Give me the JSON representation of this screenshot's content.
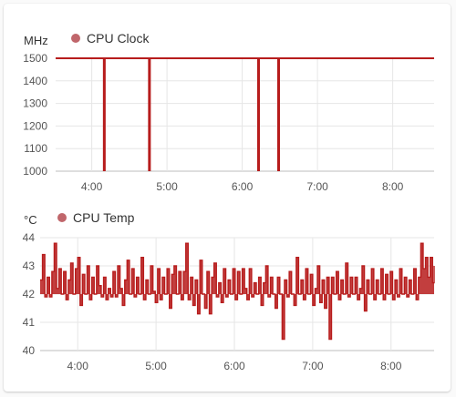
{
  "chart_data": [
    {
      "type": "line",
      "title": "",
      "ylabel": "MHz",
      "xlabel": "",
      "series": [
        {
          "name": "CPU Clock",
          "color": "#b71c1c"
        }
      ],
      "legend_marker_color": "#c0666b",
      "ylim": [
        1000,
        1500
      ],
      "yticks": [
        "1000",
        "1100",
        "1200",
        "1300",
        "1400",
        "1500"
      ],
      "xticks": [
        "4:00",
        "5:00",
        "6:00",
        "7:00",
        "8:00"
      ],
      "xlim_hours": [
        3.52,
        8.55
      ],
      "grid": true,
      "legend_position": "top-left",
      "baseline_value": 1500,
      "dips": [
        {
          "time": "4:10",
          "value": 1000
        },
        {
          "time": "4:46",
          "value": 1000
        },
        {
          "time": "6:13",
          "value": 1000
        },
        {
          "time": "6:29",
          "value": 1000
        }
      ]
    },
    {
      "type": "line",
      "title": "",
      "ylabel": "°C",
      "xlabel": "",
      "series": [
        {
          "name": "CPU Temp",
          "color": "#b71c1c"
        }
      ],
      "legend_marker_color": "#c0666b",
      "ylim": [
        40,
        44
      ],
      "yticks": [
        "40",
        "41",
        "42",
        "43",
        "44"
      ],
      "xticks": [
        "4:00",
        "5:00",
        "6:00",
        "7:00",
        "8:00"
      ],
      "xlim_hours": [
        3.52,
        8.55
      ],
      "grid": true,
      "legend_position": "top-left",
      "points": [
        [
          3.52,
          42.5
        ],
        [
          3.55,
          43.4
        ],
        [
          3.58,
          41.9
        ],
        [
          3.61,
          42.6
        ],
        [
          3.64,
          41.9
        ],
        [
          3.67,
          42.8
        ],
        [
          3.7,
          43.8
        ],
        [
          3.73,
          42.2
        ],
        [
          3.76,
          42.9
        ],
        [
          3.79,
          42.0
        ],
        [
          3.82,
          42.8
        ],
        [
          3.85,
          41.8
        ],
        [
          3.88,
          42.5
        ],
        [
          3.91,
          43.1
        ],
        [
          3.94,
          42.0
        ],
        [
          3.97,
          42.9
        ],
        [
          4.0,
          43.3
        ],
        [
          4.03,
          41.6
        ],
        [
          4.06,
          42.7
        ],
        [
          4.09,
          42.0
        ],
        [
          4.12,
          43.0
        ],
        [
          4.15,
          41.8
        ],
        [
          4.18,
          42.6
        ],
        [
          4.21,
          42.0
        ],
        [
          4.24,
          43.0
        ],
        [
          4.27,
          42.3
        ],
        [
          4.3,
          41.9
        ],
        [
          4.33,
          42.6
        ],
        [
          4.36,
          41.8
        ],
        [
          4.39,
          42.2
        ],
        [
          4.42,
          41.9
        ],
        [
          4.45,
          42.8
        ],
        [
          4.48,
          41.9
        ],
        [
          4.51,
          43.0
        ],
        [
          4.54,
          42.2
        ],
        [
          4.57,
          41.6
        ],
        [
          4.6,
          42.5
        ],
        [
          4.63,
          43.2
        ],
        [
          4.66,
          42.0
        ],
        [
          4.69,
          42.9
        ],
        [
          4.72,
          41.9
        ],
        [
          4.75,
          42.6
        ],
        [
          4.78,
          42.0
        ],
        [
          4.81,
          43.3
        ],
        [
          4.84,
          41.8
        ],
        [
          4.87,
          42.5
        ],
        [
          4.9,
          42.0
        ],
        [
          4.93,
          43.0
        ],
        [
          4.96,
          42.1
        ],
        [
          4.99,
          41.7
        ],
        [
          5.02,
          42.9
        ],
        [
          5.05,
          41.8
        ],
        [
          5.08,
          42.6
        ],
        [
          5.11,
          42.0
        ],
        [
          5.14,
          42.9
        ],
        [
          5.17,
          41.5
        ],
        [
          5.2,
          42.7
        ],
        [
          5.23,
          43.0
        ],
        [
          5.26,
          42.0
        ],
        [
          5.29,
          42.8
        ],
        [
          5.32,
          41.8
        ],
        [
          5.35,
          42.8
        ],
        [
          5.38,
          43.8
        ],
        [
          5.41,
          41.8
        ],
        [
          5.44,
          42.6
        ],
        [
          5.47,
          41.6
        ],
        [
          5.5,
          42.5
        ],
        [
          5.53,
          41.3
        ],
        [
          5.56,
          43.2
        ],
        [
          5.59,
          42.0
        ],
        [
          5.62,
          41.5
        ],
        [
          5.65,
          42.8
        ],
        [
          5.68,
          41.3
        ],
        [
          5.71,
          42.6
        ],
        [
          5.74,
          43.1
        ],
        [
          5.77,
          41.9
        ],
        [
          5.8,
          42.4
        ],
        [
          5.83,
          41.7
        ],
        [
          5.86,
          42.9
        ],
        [
          5.89,
          41.9
        ],
        [
          5.92,
          42.5
        ],
        [
          5.95,
          42.0
        ],
        [
          5.98,
          42.9
        ],
        [
          6.01,
          41.8
        ],
        [
          6.04,
          42.8
        ],
        [
          6.07,
          42.0
        ],
        [
          6.1,
          42.9
        ],
        [
          6.13,
          42.2
        ],
        [
          6.16,
          41.8
        ],
        [
          6.19,
          42.9
        ],
        [
          6.22,
          41.9
        ],
        [
          6.25,
          42.4
        ],
        [
          6.28,
          42.0
        ],
        [
          6.31,
          42.6
        ],
        [
          6.34,
          41.6
        ],
        [
          6.37,
          42.4
        ],
        [
          6.4,
          43.0
        ],
        [
          6.43,
          41.9
        ],
        [
          6.46,
          42.6
        ],
        [
          6.49,
          42.0
        ],
        [
          6.52,
          41.5
        ],
        [
          6.55,
          42.6
        ],
        [
          6.58,
          42.0
        ],
        [
          6.61,
          40.4
        ],
        [
          6.64,
          42.5
        ],
        [
          6.67,
          41.9
        ],
        [
          6.7,
          42.8
        ],
        [
          6.73,
          42.0
        ],
        [
          6.76,
          41.6
        ],
        [
          6.79,
          43.3
        ],
        [
          6.82,
          42.0
        ],
        [
          6.85,
          42.5
        ],
        [
          6.88,
          41.8
        ],
        [
          6.91,
          42.9
        ],
        [
          6.94,
          42.0
        ],
        [
          6.97,
          42.7
        ],
        [
          7.0,
          41.6
        ],
        [
          7.03,
          42.2
        ],
        [
          7.06,
          43.0
        ],
        [
          7.09,
          41.7
        ],
        [
          7.12,
          42.5
        ],
        [
          7.15,
          41.5
        ],
        [
          7.18,
          42.6
        ],
        [
          7.21,
          40.4
        ],
        [
          7.24,
          42.6
        ],
        [
          7.27,
          42.0
        ],
        [
          7.3,
          42.8
        ],
        [
          7.33,
          41.8
        ],
        [
          7.36,
          42.5
        ],
        [
          7.39,
          42.0
        ],
        [
          7.42,
          43.1
        ],
        [
          7.45,
          41.9
        ],
        [
          7.48,
          42.6
        ],
        [
          7.51,
          42.0
        ],
        [
          7.54,
          42.6
        ],
        [
          7.57,
          41.8
        ],
        [
          7.6,
          42.2
        ],
        [
          7.63,
          43.0
        ],
        [
          7.66,
          41.4
        ],
        [
          7.69,
          42.5
        ],
        [
          7.72,
          42.0
        ],
        [
          7.75,
          42.9
        ],
        [
          7.78,
          41.8
        ],
        [
          7.81,
          42.5
        ],
        [
          7.84,
          42.0
        ],
        [
          7.87,
          42.9
        ],
        [
          7.9,
          41.8
        ],
        [
          7.93,
          42.7
        ],
        [
          7.96,
          42.0
        ],
        [
          7.99,
          42.8
        ],
        [
          8.02,
          41.8
        ],
        [
          8.05,
          42.5
        ],
        [
          8.08,
          41.9
        ],
        [
          8.11,
          42.9
        ],
        [
          8.14,
          42.0
        ],
        [
          8.17,
          42.6
        ],
        [
          8.2,
          41.9
        ],
        [
          8.23,
          42.5
        ],
        [
          8.26,
          42.0
        ],
        [
          8.29,
          42.9
        ],
        [
          8.32,
          41.8
        ],
        [
          8.35,
          42.6
        ],
        [
          8.38,
          43.8
        ],
        [
          8.41,
          42.9
        ],
        [
          8.44,
          43.3
        ],
        [
          8.47,
          42.6
        ],
        [
          8.5,
          43.3
        ],
        [
          8.53,
          42.4
        ],
        [
          8.55,
          43.0
        ]
      ]
    }
  ]
}
